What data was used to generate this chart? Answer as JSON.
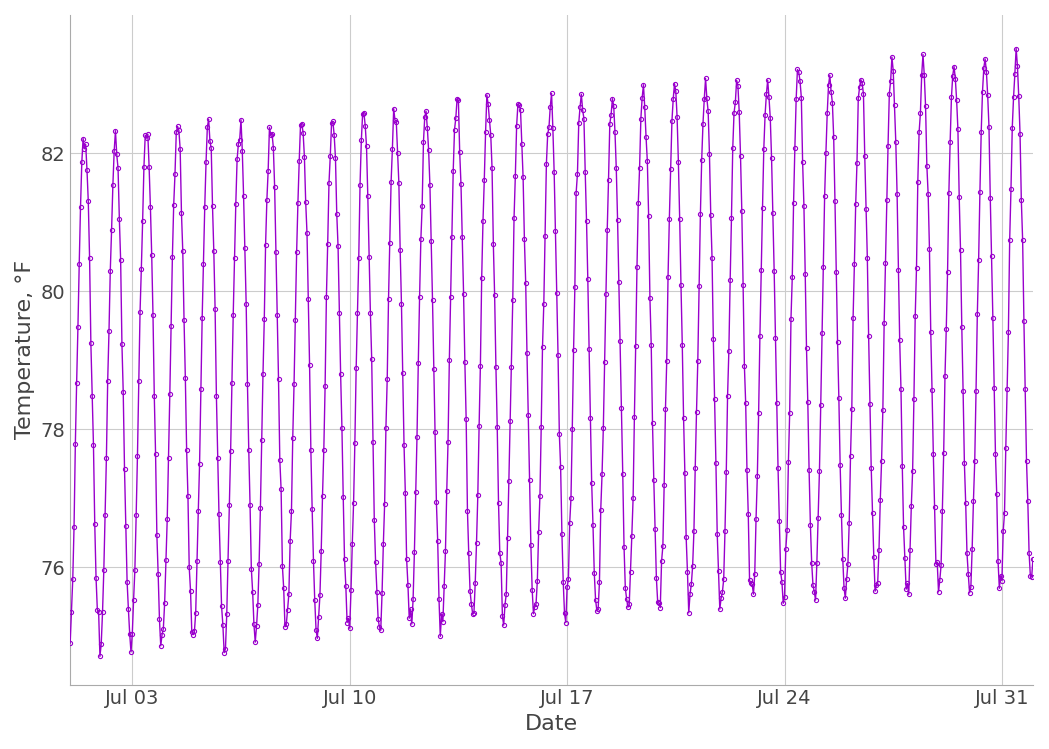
{
  "title": "",
  "xlabel": "Date",
  "ylabel": "Temperature, °F",
  "line_color": "#9900CC",
  "marker_color": "#9900CC",
  "marker_style": "o",
  "marker_size": 3,
  "line_width": 1.0,
  "background_color": "#ffffff",
  "panel_background": "#ffffff",
  "grid_color": "#cccccc",
  "ylim": [
    74.3,
    84.0
  ],
  "yticks": [
    76,
    78,
    80,
    82
  ],
  "xtick_labels": [
    "Jul 03",
    "Jul 10",
    "Jul 17",
    "Jul 24",
    "Jul 31"
  ],
  "tick_fontsize": 14,
  "label_fontsize": 16,
  "figsize": [
    10.49,
    7.49
  ],
  "dpi": 100
}
